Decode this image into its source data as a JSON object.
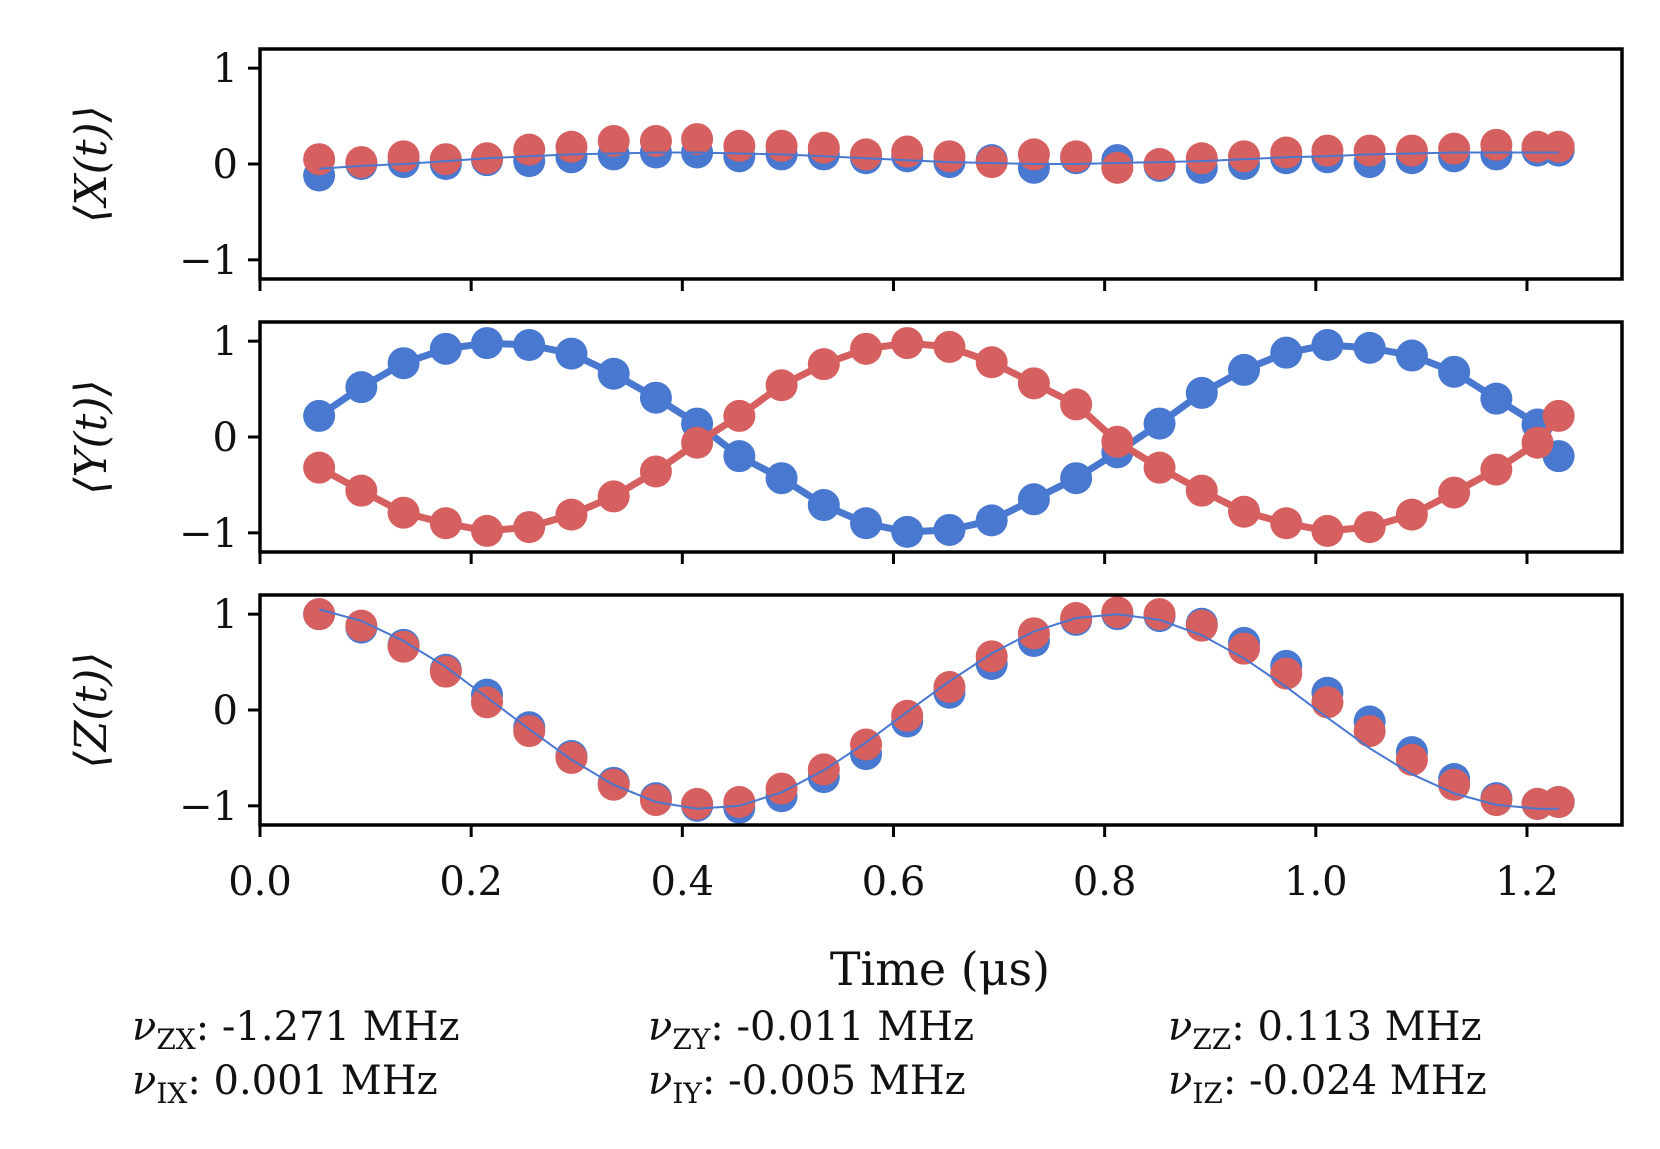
{
  "figure_title": "",
  "x_axis": {
    "label": "Time (μs)",
    "ticks": [
      0.0,
      0.2,
      0.4,
      0.6,
      0.8,
      1.0,
      1.2
    ],
    "tick_labels": [
      "0.0",
      "0.2",
      "0.4",
      "0.6",
      "0.8",
      "1.0",
      "1.2"
    ],
    "range": [
      0.0,
      1.29
    ]
  },
  "colors": {
    "blue": "#4878d0",
    "red": "#d65f5f",
    "axis": "#000000"
  },
  "chart_data": [
    {
      "type": "scatter",
      "title": "",
      "ylabel": "⟨X(t)⟩",
      "ylim": [
        -1.2,
        1.2
      ],
      "yticks": [
        -1,
        0,
        1
      ],
      "ytick_labels": [
        "−1",
        "0",
        "1"
      ],
      "x": [
        0.056,
        0.096,
        0.136,
        0.176,
        0.215,
        0.255,
        0.295,
        0.335,
        0.375,
        0.414,
        0.454,
        0.494,
        0.534,
        0.574,
        0.613,
        0.653,
        0.693,
        0.733,
        0.773,
        0.812,
        0.852,
        0.892,
        0.932,
        0.972,
        1.011,
        1.051,
        1.091,
        1.131,
        1.171,
        1.21,
        1.23
      ],
      "series": [
        {
          "name": "blue",
          "color": "#4878d0",
          "values": [
            -0.12,
            0.0,
            0.02,
            0.0,
            0.04,
            0.03,
            0.07,
            0.1,
            0.12,
            0.12,
            0.08,
            0.1,
            0.1,
            0.06,
            0.08,
            0.02,
            0.04,
            -0.04,
            0.06,
            0.04,
            -0.02,
            -0.04,
            0.0,
            0.06,
            0.07,
            0.02,
            0.06,
            0.08,
            0.1,
            0.14,
            0.14
          ],
          "fit": [
            -0.05,
            -0.02,
            0.0,
            0.03,
            0.06,
            0.08,
            0.1,
            0.11,
            0.12,
            0.12,
            0.11,
            0.1,
            0.08,
            0.06,
            0.04,
            0.02,
            0.01,
            0.0,
            0.0,
            0.01,
            0.02,
            0.03,
            0.05,
            0.07,
            0.08,
            0.1,
            0.11,
            0.12,
            0.12,
            0.12,
            0.12
          ]
        },
        {
          "name": "red",
          "color": "#d65f5f",
          "values": [
            0.05,
            0.02,
            0.08,
            0.05,
            0.06,
            0.15,
            0.18,
            0.24,
            0.24,
            0.26,
            0.19,
            0.19,
            0.17,
            0.1,
            0.13,
            0.08,
            0.02,
            0.1,
            0.08,
            -0.04,
            0.0,
            0.06,
            0.08,
            0.12,
            0.14,
            0.14,
            0.14,
            0.16,
            0.2,
            0.18,
            0.18
          ]
        }
      ]
    },
    {
      "type": "scatter",
      "title": "",
      "ylabel": "⟨Y(t)⟩",
      "ylim": [
        -1.2,
        1.2
      ],
      "yticks": [
        -1,
        0,
        1
      ],
      "ytick_labels": [
        "−1",
        "0",
        "1"
      ],
      "x": [
        0.056,
        0.096,
        0.136,
        0.176,
        0.215,
        0.255,
        0.295,
        0.335,
        0.375,
        0.414,
        0.454,
        0.494,
        0.534,
        0.574,
        0.613,
        0.653,
        0.693,
        0.733,
        0.773,
        0.812,
        0.852,
        0.892,
        0.932,
        0.972,
        1.011,
        1.051,
        1.091,
        1.131,
        1.171,
        1.21,
        1.23
      ],
      "series": [
        {
          "name": "blue",
          "color": "#4878d0",
          "values": [
            0.22,
            0.52,
            0.77,
            0.92,
            0.98,
            0.96,
            0.87,
            0.66,
            0.41,
            0.14,
            -0.2,
            -0.43,
            -0.71,
            -0.9,
            -0.99,
            -0.97,
            -0.87,
            -0.65,
            -0.43,
            -0.16,
            0.14,
            0.46,
            0.7,
            0.88,
            0.96,
            0.93,
            0.85,
            0.68,
            0.4,
            0.13,
            -0.2
          ]
        },
        {
          "name": "red",
          "color": "#d65f5f",
          "values": [
            -0.32,
            -0.56,
            -0.79,
            -0.9,
            -0.98,
            -0.94,
            -0.81,
            -0.62,
            -0.36,
            -0.06,
            0.22,
            0.54,
            0.76,
            0.92,
            0.98,
            0.94,
            0.78,
            0.56,
            0.34,
            -0.05,
            -0.32,
            -0.56,
            -0.78,
            -0.9,
            -0.98,
            -0.94,
            -0.81,
            -0.58,
            -0.34,
            -0.06,
            0.22
          ]
        }
      ]
    },
    {
      "type": "scatter",
      "title": "",
      "ylabel": "⟨Z(t)⟩",
      "ylim": [
        -1.2,
        1.2
      ],
      "yticks": [
        -1,
        0,
        1
      ],
      "ytick_labels": [
        "−1",
        "0",
        "1"
      ],
      "x": [
        0.056,
        0.096,
        0.136,
        0.176,
        0.215,
        0.255,
        0.295,
        0.335,
        0.375,
        0.414,
        0.454,
        0.494,
        0.534,
        0.574,
        0.613,
        0.653,
        0.693,
        0.733,
        0.773,
        0.812,
        0.852,
        0.892,
        0.932,
        0.972,
        1.011,
        1.051,
        1.091,
        1.131,
        1.171,
        1.21,
        1.23
      ],
      "series": [
        {
          "name": "blue",
          "color": "#4878d0",
          "values": [
            1.0,
            0.86,
            0.68,
            0.42,
            0.16,
            -0.18,
            -0.48,
            -0.76,
            -0.92,
            -1.0,
            -1.02,
            -0.9,
            -0.7,
            -0.46,
            -0.12,
            0.18,
            0.48,
            0.72,
            0.94,
            1.0,
            0.98,
            0.9,
            0.7,
            0.46,
            0.18,
            -0.12,
            -0.44,
            -0.72,
            -0.92,
            -0.98,
            -0.96
          ],
          "fit": [
            1.05,
            0.93,
            0.72,
            0.45,
            0.13,
            -0.2,
            -0.52,
            -0.78,
            -0.96,
            -1.03,
            -1.0,
            -0.86,
            -0.63,
            -0.34,
            -0.02,
            0.3,
            0.59,
            0.82,
            0.96,
            1.0,
            0.94,
            0.78,
            0.54,
            0.24,
            -0.08,
            -0.4,
            -0.67,
            -0.87,
            -0.99,
            -1.03,
            -1.03
          ]
        },
        {
          "name": "red",
          "color": "#d65f5f",
          "values": [
            1.0,
            0.88,
            0.66,
            0.4,
            0.08,
            -0.22,
            -0.5,
            -0.78,
            -0.94,
            -0.98,
            -0.96,
            -0.82,
            -0.62,
            -0.36,
            -0.06,
            0.24,
            0.56,
            0.8,
            0.96,
            1.02,
            1.0,
            0.88,
            0.64,
            0.38,
            0.08,
            -0.22,
            -0.52,
            -0.78,
            -0.94,
            -0.98,
            -0.96
          ]
        }
      ]
    }
  ],
  "parameters": [
    {
      "symbol": "ν",
      "sub": "ZX",
      "value": ": -1.271 MHz"
    },
    {
      "symbol": "ν",
      "sub": "ZY",
      "value": ": -0.011 MHz"
    },
    {
      "symbol": "ν",
      "sub": "ZZ",
      "value": ": 0.113 MHz"
    },
    {
      "symbol": "ν",
      "sub": "IX",
      "value": ": 0.001 MHz"
    },
    {
      "symbol": "ν",
      "sub": "IY",
      "value": ": -0.005 MHz"
    },
    {
      "symbol": "ν",
      "sub": "IZ",
      "value": ": -0.024 MHz"
    }
  ]
}
